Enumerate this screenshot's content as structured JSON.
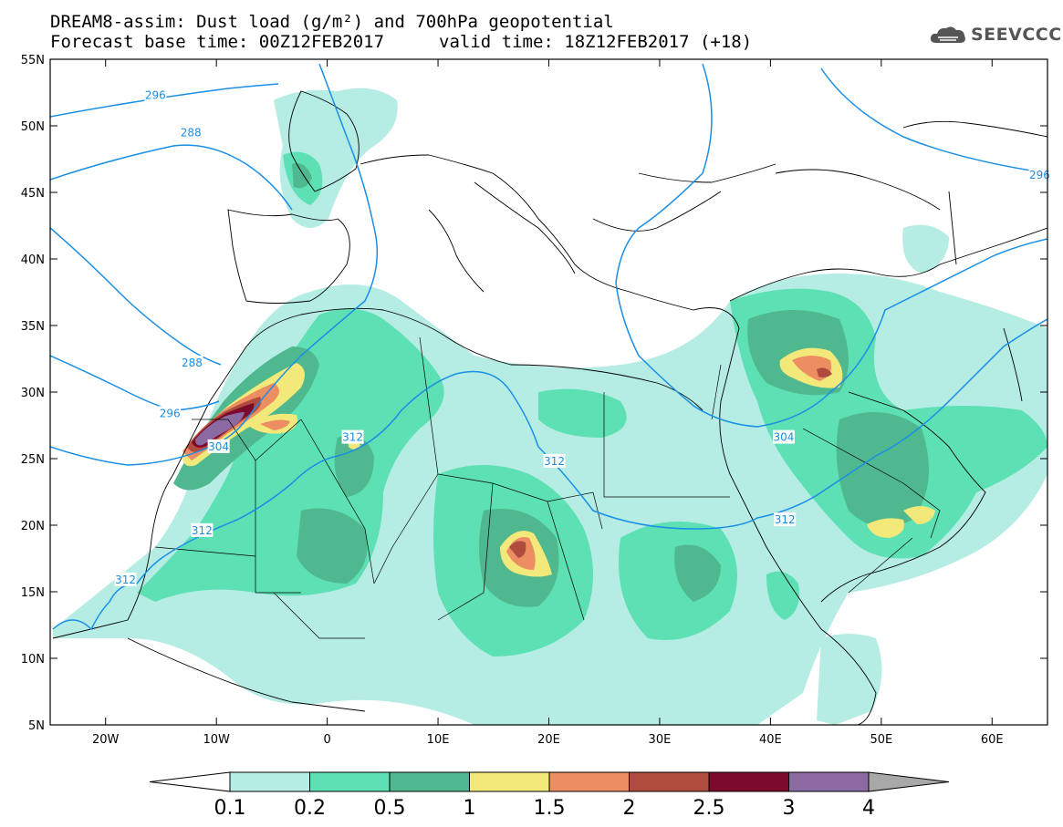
{
  "header": {
    "line1": "DREAM8-assim: Dust load (g/m²) and 700hPa geopotential",
    "line2_left": "Forecast base time: 00Z12FEB2017",
    "line2_right": "valid time: 18Z12FEB2017 (+18)"
  },
  "logo": {
    "text": "SEEVCCC",
    "icon": "cloud-icon"
  },
  "map": {
    "lon_range": [
      -25,
      65
    ],
    "lat_range": [
      5,
      55
    ],
    "x_ticks": [
      "20W",
      "10W",
      "0",
      "10E",
      "20E",
      "30E",
      "40E",
      "50E",
      "60E"
    ],
    "x_tick_values": [
      -20,
      -10,
      0,
      10,
      20,
      30,
      40,
      50,
      60
    ],
    "y_ticks": [
      "55N",
      "50N",
      "45N",
      "40N",
      "35N",
      "30N",
      "25N",
      "20N",
      "15N",
      "10N",
      "5N"
    ],
    "y_tick_values": [
      55,
      50,
      45,
      40,
      35,
      30,
      25,
      20,
      15,
      10,
      5
    ],
    "contour_color": "#1a8fe6",
    "contour_labels": [
      {
        "text": "296",
        "lon": -15.5,
        "lat": 52.3
      },
      {
        "text": "288",
        "lon": -12.3,
        "lat": 49.5
      },
      {
        "text": "288",
        "lon": -12.2,
        "lat": 32.2
      },
      {
        "text": "296",
        "lon": -14.2,
        "lat": 28.4
      },
      {
        "text": "304",
        "lon": -9.8,
        "lat": 25.9
      },
      {
        "text": "312",
        "lon": 2.3,
        "lat": 26.6
      },
      {
        "text": "312",
        "lon": 20.5,
        "lat": 24.8
      },
      {
        "text": "304",
        "lon": 41.2,
        "lat": 26.6
      },
      {
        "text": "312",
        "lon": 41.3,
        "lat": 20.4
      },
      {
        "text": "312",
        "lon": -11.3,
        "lat": 19.6
      },
      {
        "text": "312",
        "lon": -18.2,
        "lat": 15.9
      },
      {
        "text": "296",
        "lon": 64.3,
        "lat": 46.3
      }
    ]
  },
  "colorbar": {
    "labels": [
      "0.1",
      "0.2",
      "0.5",
      "1",
      "1.5",
      "2",
      "2.5",
      "3",
      "4"
    ],
    "colors": [
      "#b5ede4",
      "#5de0b4",
      "#50b88e",
      "#f3e97a",
      "#ec8d62",
      "#b04c3e",
      "#7c0a2a",
      "#8a6aa0"
    ],
    "under_color": "#ffffff",
    "over_color": "#a8a8a8"
  }
}
